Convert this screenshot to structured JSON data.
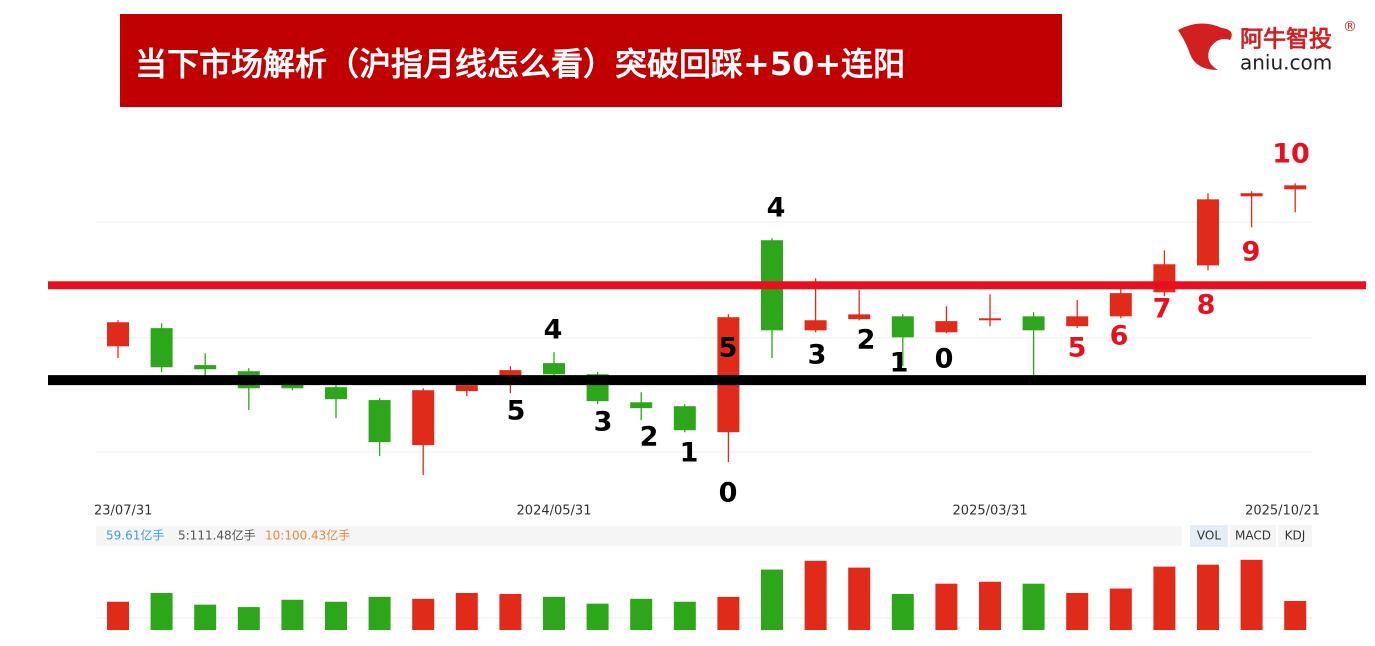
{
  "header": {
    "title": "当下市场解析（沪指月线怎么看）突破回踩+50+连阳",
    "logo_cn": "阿牛智投",
    "logo_mark": "®",
    "logo_en": "aniu.com"
  },
  "chart_data": [
    {
      "type": "candlestick",
      "categories": [
        "23/07/31",
        null,
        null,
        null,
        null,
        null,
        null,
        null,
        null,
        null,
        "2024/05/31",
        null,
        null,
        null,
        null,
        null,
        null,
        null,
        null,
        null,
        "2025/03/31",
        null,
        null,
        null,
        null,
        null,
        null,
        "2025/10/21"
      ],
      "open": [
        3203,
        3286,
        3117,
        3089,
        3030,
        3016,
        2957,
        2751,
        2998,
        3062,
        3126,
        3075,
        2947,
        2929,
        2810,
        3688,
        3276,
        3327,
        3340,
        3267,
        3322,
        3340,
        3295,
        3340,
        3450,
        3573,
        3889,
        3921
      ],
      "close": [
        3313,
        3107,
        3098,
        3011,
        3011,
        2961,
        2765,
        3002,
        3025,
        3094,
        3075,
        2952,
        2920,
        2819,
        3336,
        3276,
        3322,
        3349,
        3244,
        3318,
        3331,
        3276,
        3340,
        3446,
        3578,
        3875,
        3903,
        3939
      ],
      "high": [
        3322,
        3308,
        3171,
        3103,
        3066,
        3025,
        2966,
        3011,
        3071,
        3112,
        3176,
        3085,
        2993,
        2938,
        3350,
        3697,
        3514,
        3459,
        3350,
        3386,
        3441,
        3359,
        3414,
        3464,
        3642,
        3903,
        3912,
        3948
      ],
      "low": [
        3149,
        3085,
        3066,
        2911,
        3002,
        2874,
        2701,
        2614,
        2975,
        2989,
        3066,
        2938,
        2865,
        2810,
        2673,
        3149,
        3267,
        3322,
        3112,
        3263,
        3295,
        3066,
        3286,
        3331,
        3432,
        3550,
        3747,
        3816
      ],
      "up_color": "#e02b1a",
      "down_color": "#2ea61c",
      "ylim": [
        2500,
        4000
      ],
      "levels": [
        {
          "value": 3482,
          "color": "#e8101e"
        },
        {
          "value": 3048,
          "color": "#000000"
        }
      ],
      "annotations": [
        {
          "text": "4",
          "color": "#000000"
        },
        {
          "text": "5",
          "color": "#000000"
        },
        {
          "text": "3",
          "color": "#000000"
        },
        {
          "text": "2",
          "color": "#000000"
        },
        {
          "text": "1",
          "color": "#000000"
        },
        {
          "text": "0",
          "color": "#000000"
        },
        {
          "text": "5",
          "color": "#000000"
        },
        {
          "text": "4",
          "color": "#000000"
        },
        {
          "text": "3",
          "color": "#000000"
        },
        {
          "text": "2",
          "color": "#000000"
        },
        {
          "text": "1",
          "color": "#000000"
        },
        {
          "text": "0",
          "color": "#000000"
        },
        {
          "text": "5",
          "color": "#e8101e"
        },
        {
          "text": "6",
          "color": "#e8101e"
        },
        {
          "text": "7",
          "color": "#e8101e"
        },
        {
          "text": "8",
          "color": "#e8101e"
        },
        {
          "text": "9",
          "color": "#e8101e"
        },
        {
          "text": "10",
          "color": "#e8101e"
        }
      ]
    },
    {
      "type": "bar",
      "values": [
        58,
        76,
        52,
        47,
        62,
        58,
        68,
        64,
        76,
        74,
        68,
        54,
        64,
        58,
        68,
        124,
        142,
        128,
        74,
        95,
        99,
        95,
        76,
        85,
        130,
        134,
        144,
        59.61
      ],
      "ylim": [
        0,
        160
      ],
      "value_label": "59.61亿手",
      "ma5_label": "5:111.48亿手",
      "ma10_label": "10:100.43亿手",
      "tabs": [
        "VOL",
        "MACD",
        "KDJ"
      ]
    }
  ]
}
